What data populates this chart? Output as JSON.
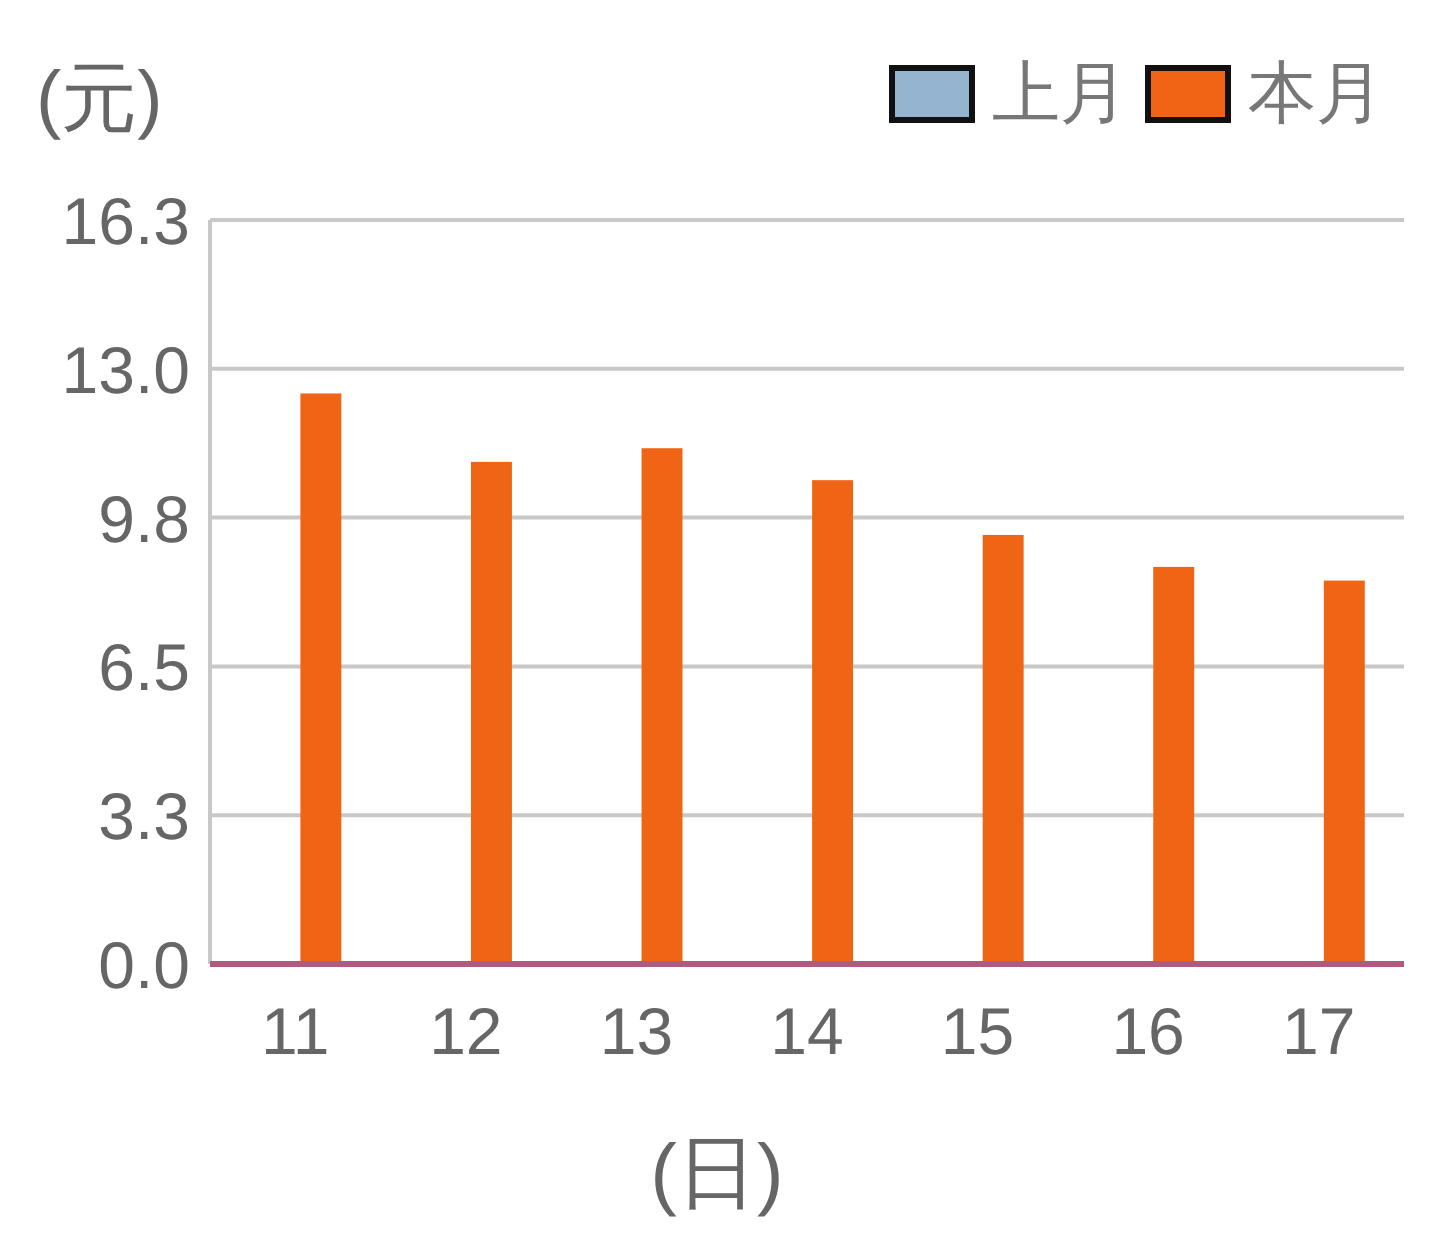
{
  "chart_data": {
    "type": "bar",
    "ylabel": "(元)",
    "xlabel": "(日)",
    "categories": [
      "11",
      "12",
      "13",
      "14",
      "15",
      "16",
      "17"
    ],
    "series": [
      {
        "name": "上月",
        "color": "#94b4d0",
        "values": [
          0,
          0,
          0,
          0,
          0,
          0,
          0
        ]
      },
      {
        "name": "本月",
        "color": "#ef6415",
        "values": [
          12.5,
          11.0,
          11.3,
          10.6,
          9.4,
          8.7,
          8.4
        ]
      }
    ],
    "ylim": [
      0,
      16.3
    ],
    "yticks": [
      {
        "value": 0,
        "label": "0.0"
      },
      {
        "value": 3.26,
        "label": "3.3"
      },
      {
        "value": 6.52,
        "label": "6.5"
      },
      {
        "value": 9.78,
        "label": "9.8"
      },
      {
        "value": 13.04,
        "label": "13.0"
      },
      {
        "value": 16.3,
        "label": "16.3"
      }
    ],
    "grid": "y",
    "legend": "top right"
  }
}
